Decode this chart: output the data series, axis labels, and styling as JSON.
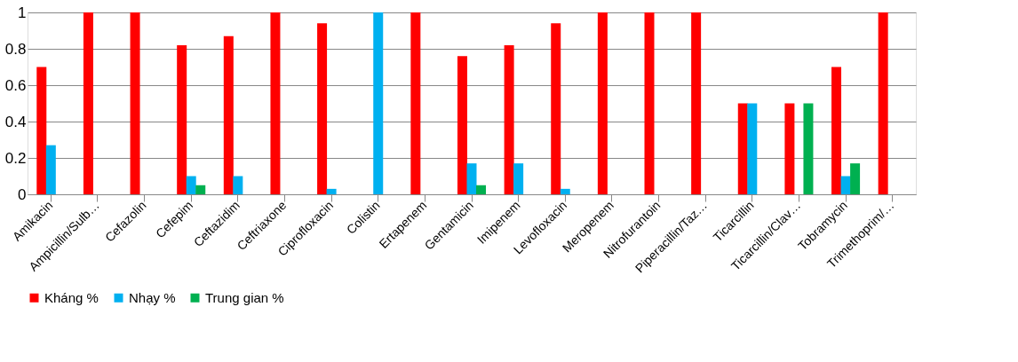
{
  "chart_data": {
    "type": "bar",
    "categories": [
      "Amikacin",
      "Ampicillin/Sulb…",
      "Cefazolin",
      "Cefepim",
      "Ceftazidim",
      "Ceftriaxone",
      "Ciprofloxacin",
      "Colistin",
      "Ertapenem",
      "Gentamicin",
      "Imipenem",
      "Levofloxacin",
      "Meropenem",
      "Nitrofurantoin",
      "Piperacillin/Taz…",
      "Ticarcillin",
      "Ticarcillin/Clav…",
      "Tobramycin",
      "Trimethoprim/…"
    ],
    "series": [
      {
        "name": "Kháng  %",
        "color": "#ff0000",
        "values": [
          0.7,
          1,
          1,
          0.82,
          0.87,
          1,
          0.94,
          0,
          1,
          0.76,
          0.82,
          0.94,
          1,
          1,
          1,
          0.5,
          0.5,
          0.7,
          1
        ]
      },
      {
        "name": "Nhạy  %",
        "color": "#00b0f0",
        "values": [
          0.27,
          0,
          0,
          0.1,
          0.1,
          0,
          0.03,
          1,
          0,
          0.17,
          0.17,
          0.03,
          0,
          0,
          0,
          0.5,
          0,
          0.1,
          0
        ]
      },
      {
        "name": "Trung gian  %",
        "color": "#00b050",
        "values": [
          0,
          0,
          0,
          0.05,
          0,
          0,
          0,
          0,
          0,
          0.05,
          0,
          0,
          0,
          0,
          0,
          0,
          0.5,
          0.17,
          0
        ]
      }
    ],
    "ylim": [
      0,
      1
    ],
    "yticks": [
      0,
      0.2,
      0.4,
      0.6,
      0.8,
      1
    ],
    "grid": "y",
    "legend": "bottom"
  }
}
